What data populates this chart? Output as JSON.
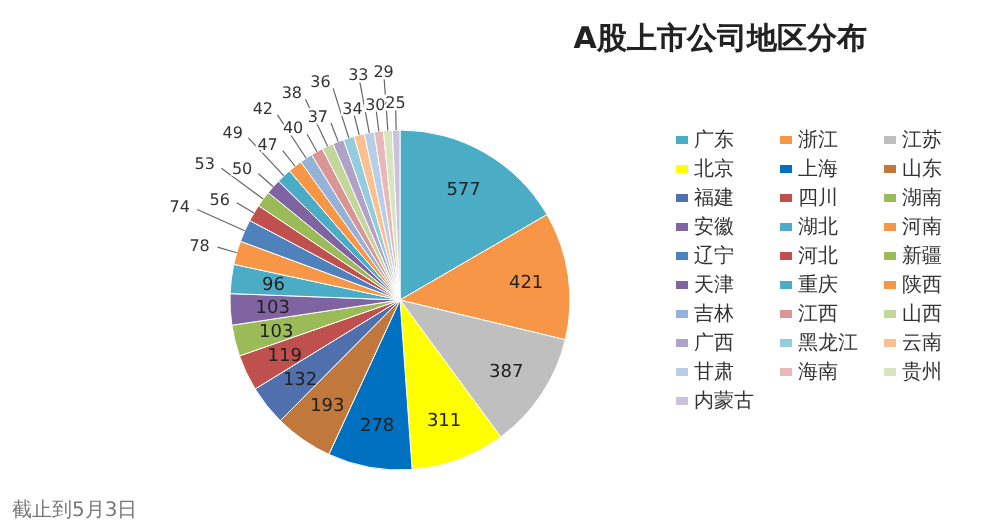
{
  "chart_data": {
    "type": "pie",
    "title": "A股上市公司地区分布",
    "categories": [
      "广东",
      "浙江",
      "江苏",
      "北京",
      "上海",
      "山东",
      "福建",
      "四川",
      "湖南",
      "安徽",
      "湖北",
      "河南",
      "辽宁",
      "河北",
      "新疆",
      "天津",
      "重庆",
      "陕西",
      "吉林",
      "江西",
      "山西",
      "广西",
      "黑龙江",
      "云南",
      "甘肃",
      "海南",
      "贵州",
      "内蒙古"
    ],
    "values": [
      577,
      421,
      387,
      311,
      278,
      193,
      132,
      119,
      103,
      103,
      96,
      78,
      74,
      56,
      53,
      50,
      49,
      47,
      42,
      40,
      38,
      37,
      36,
      34,
      33,
      30,
      29,
      25
    ],
    "colors": [
      "#4bacc6",
      "#f79646",
      "#bfbfbf",
      "#ffff00",
      "#0070c0",
      "#c0783c",
      "#4f6fad",
      "#c0504d",
      "#9bbb59",
      "#8064a2",
      "#4bacc6",
      "#f79646",
      "#4f81bd",
      "#c0504d",
      "#9bbb59",
      "#8064a2",
      "#4bacc6",
      "#f79646",
      "#95b3d7",
      "#d99694",
      "#c3d69b",
      "#b3a2c7",
      "#93cddd",
      "#fac090",
      "#b9cde5",
      "#e6b9b8",
      "#d7e4bd",
      "#ccc1da"
    ],
    "data_labels": true,
    "legend": "right",
    "annotations": [
      "截止到5月3日"
    ]
  }
}
